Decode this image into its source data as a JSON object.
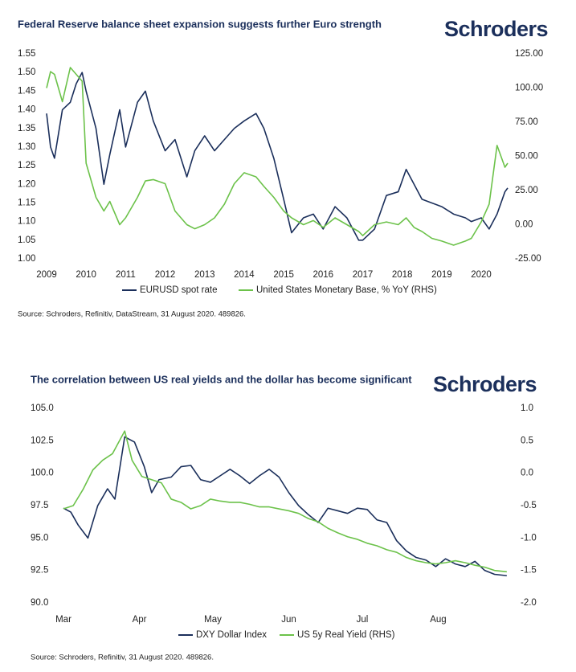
{
  "chart_data": [
    {
      "type": "line",
      "title": "Federal Reserve balance sheet expansion suggests further Euro strength",
      "logo": "Schroders",
      "source": "Source: Schroders, Refinitiv, DataStream, 31 August 2020. 489826.",
      "x": [
        2009.0,
        2009.1,
        2009.2,
        2009.4,
        2009.6,
        2009.75,
        2009.9,
        2010.0,
        2010.25,
        2010.45,
        2010.6,
        2010.85,
        2011.0,
        2011.3,
        2011.5,
        2011.7,
        2012.0,
        2012.25,
        2012.55,
        2012.75,
        2013.0,
        2013.25,
        2013.5,
        2013.75,
        2014.0,
        2014.3,
        2014.5,
        2014.75,
        2015.0,
        2015.2,
        2015.5,
        2015.75,
        2016.0,
        2016.3,
        2016.6,
        2016.9,
        2017.0,
        2017.3,
        2017.6,
        2017.9,
        2018.1,
        2018.3,
        2018.5,
        2018.75,
        2019.0,
        2019.3,
        2019.6,
        2019.75,
        2020.0,
        2020.2,
        2020.4,
        2020.6,
        2020.67
      ],
      "series": [
        {
          "name": "EURUSD spot rate",
          "color": "#1b2f5b",
          "values": [
            1.39,
            1.3,
            1.27,
            1.4,
            1.42,
            1.47,
            1.5,
            1.45,
            1.35,
            1.2,
            1.28,
            1.4,
            1.3,
            1.42,
            1.45,
            1.37,
            1.29,
            1.32,
            1.22,
            1.29,
            1.33,
            1.29,
            1.32,
            1.35,
            1.37,
            1.39,
            1.35,
            1.27,
            1.16,
            1.07,
            1.11,
            1.12,
            1.08,
            1.14,
            1.11,
            1.05,
            1.05,
            1.08,
            1.17,
            1.18,
            1.24,
            1.2,
            1.16,
            1.15,
            1.14,
            1.12,
            1.11,
            1.1,
            1.11,
            1.08,
            1.12,
            1.18,
            1.19
          ]
        },
        {
          "name": "United States Monetary Base, % YoY (RHS)",
          "color": "#6cc24a",
          "axis": "y2",
          "values": [
            100,
            112,
            110,
            90,
            115,
            110,
            105,
            45,
            20,
            10,
            17,
            0,
            5,
            20,
            32,
            33,
            30,
            10,
            0,
            -3,
            0,
            5,
            15,
            30,
            38,
            35,
            28,
            20,
            10,
            5,
            0,
            3,
            -2,
            5,
            0,
            -5,
            -8,
            0,
            2,
            0,
            5,
            -2,
            -5,
            -10,
            -12,
            -15,
            -12,
            -10,
            2,
            15,
            58,
            42,
            45
          ]
        }
      ],
      "xlim": [
        2009,
        2020.67
      ],
      "xticks": [
        2009,
        2010,
        2011,
        2012,
        2013,
        2014,
        2015,
        2016,
        2017,
        2018,
        2019,
        2020
      ],
      "ylim": [
        1.0,
        1.55
      ],
      "yticks": [
        {
          "value": 1.0,
          "label": "1.00"
        },
        1.05,
        {
          "value": 1.1,
          "label": "1.10"
        },
        1.15,
        {
          "value": 1.2,
          "label": "1.20"
        },
        1.25,
        {
          "value": 1.3,
          "label": "1.30"
        },
        1.35,
        {
          "value": 1.4,
          "label": "1.40"
        },
        1.45,
        {
          "value": 1.5,
          "label": "1.50"
        },
        1.55
      ],
      "y2lim": [
        -25,
        125
      ],
      "y2ticks": [
        {
          "value": -25,
          "label": "-25.00"
        },
        {
          "value": 0,
          "label": "0.00"
        },
        {
          "value": 25,
          "label": "25.00"
        },
        {
          "value": 50,
          "label": "50.00"
        },
        {
          "value": 75,
          "label": "75.00"
        },
        {
          "value": 100,
          "label": "100.00"
        },
        {
          "value": 125,
          "label": "125.00"
        }
      ],
      "legend": "bottom"
    },
    {
      "type": "line",
      "title": "The correlation between US real yields and the dollar has become significant",
      "logo": "Schroders",
      "source": "Source: Schroders, Refinitiv, 31 August 2020. 489826.",
      "series": [
        {
          "name": "DXY Dollar Index",
          "color": "#1b2f5b",
          "x": [
            0,
            3,
            6,
            10,
            14,
            18,
            21,
            25,
            29,
            33,
            36,
            39,
            44,
            48,
            52,
            56,
            60,
            64,
            68,
            72,
            76,
            80,
            84,
            88,
            92,
            96,
            100,
            104,
            108,
            112,
            116,
            120,
            124,
            128,
            132,
            136,
            140,
            144,
            148,
            152,
            156,
            160,
            164,
            168,
            172,
            176,
            181
          ],
          "values": [
            97.3,
            97.0,
            96.0,
            95.0,
            97.5,
            98.8,
            98.0,
            102.8,
            102.4,
            100.5,
            98.5,
            99.5,
            99.7,
            100.5,
            100.6,
            99.5,
            99.3,
            99.8,
            100.3,
            99.8,
            99.2,
            99.8,
            100.3,
            99.7,
            98.5,
            97.5,
            96.8,
            96.2,
            97.3,
            97.1,
            96.9,
            97.3,
            97.2,
            96.4,
            96.2,
            94.8,
            94.0,
            93.5,
            93.3,
            92.8,
            93.4,
            93.0,
            92.8,
            93.2,
            92.5,
            92.2,
            92.1
          ]
        },
        {
          "name": "US 5y Real Yield (RHS)",
          "color": "#6cc24a",
          "axis": "y2",
          "x": [
            0,
            4,
            8,
            12,
            16,
            20,
            25,
            28,
            32,
            36,
            40,
            44,
            48,
            52,
            56,
            60,
            64,
            68,
            72,
            76,
            80,
            84,
            88,
            92,
            96,
            100,
            104,
            108,
            112,
            116,
            120,
            124,
            128,
            132,
            136,
            140,
            144,
            148,
            152,
            156,
            160,
            164,
            168,
            172,
            176,
            181
          ],
          "values": [
            -0.55,
            -0.5,
            -0.25,
            0.05,
            0.2,
            0.3,
            0.65,
            0.2,
            -0.05,
            -0.1,
            -0.15,
            -0.4,
            -0.45,
            -0.55,
            -0.5,
            -0.4,
            -0.43,
            -0.45,
            -0.45,
            -0.48,
            -0.52,
            -0.52,
            -0.55,
            -0.58,
            -0.62,
            -0.7,
            -0.75,
            -0.85,
            -0.92,
            -0.98,
            -1.02,
            -1.08,
            -1.12,
            -1.18,
            -1.22,
            -1.3,
            -1.35,
            -1.38,
            -1.4,
            -1.38,
            -1.35,
            -1.38,
            -1.42,
            -1.45,
            -1.5,
            -1.52
          ]
        }
      ],
      "xlim": [
        0,
        184
      ],
      "xticks": [
        {
          "value": 0,
          "label": "Mar"
        },
        {
          "value": 31,
          "label": "Apr"
        },
        {
          "value": 61,
          "label": "May"
        },
        {
          "value": 92,
          "label": "Jun"
        },
        {
          "value": 122,
          "label": "Jul"
        },
        {
          "value": 153,
          "label": "Aug"
        }
      ],
      "ylim": [
        90,
        105
      ],
      "yticks": [
        {
          "value": 90,
          "label": "90.0"
        },
        92.5,
        {
          "value": 95,
          "label": "95.0"
        },
        97.5,
        {
          "value": 100,
          "label": "100.0"
        },
        102.5,
        {
          "value": 105,
          "label": "105.0"
        }
      ],
      "y2lim": [
        -2,
        1
      ],
      "y2ticks": [
        {
          "value": -2,
          "label": "-2.0"
        },
        -1.5,
        {
          "value": -1,
          "label": "-1.0"
        },
        -0.5,
        {
          "value": 0,
          "label": "0.0"
        },
        0.5,
        {
          "value": 1,
          "label": "1.0"
        }
      ],
      "legend": "bottom"
    }
  ]
}
